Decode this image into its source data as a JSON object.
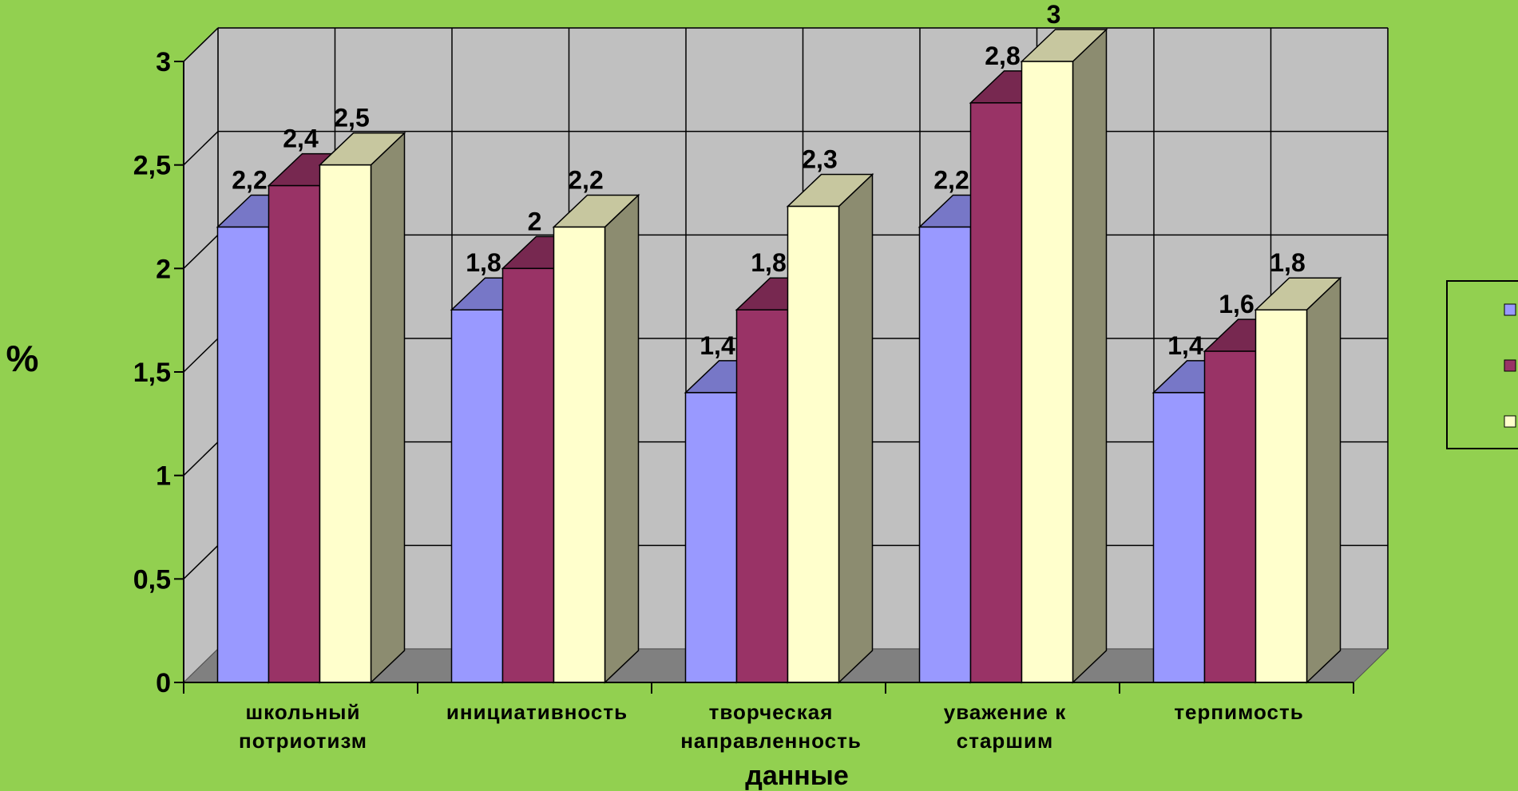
{
  "chart_data": {
    "type": "bar",
    "style": "3d-clustered-column",
    "title": "",
    "xlabel": "данные",
    "ylabel": "%",
    "ylim": [
      0,
      3
    ],
    "yticks": [
      "0",
      "0,5",
      "1",
      "1,5",
      "2",
      "2,5",
      "3"
    ],
    "ytick_values": [
      0,
      0.5,
      1,
      1.5,
      2,
      2.5,
      3
    ],
    "grid": true,
    "legend": "right",
    "categories": [
      [
        "школьный",
        "потриотизм"
      ],
      [
        "инициативность"
      ],
      [
        "творческая",
        "направленность"
      ],
      [
        "уважение к",
        "старшим"
      ],
      [
        "терпимость"
      ]
    ],
    "series": [
      {
        "color": "#9999ff",
        "values": [
          2.2,
          1.8,
          1.4,
          2.2,
          1.4
        ],
        "labels": [
          "2,2",
          "1,8",
          "1,4",
          "2,2",
          "1,4"
        ]
      },
      {
        "color": "#993366",
        "values": [
          2.4,
          2.0,
          1.8,
          2.8,
          1.6
        ],
        "labels": [
          "2,4",
          "2",
          "1,8",
          "2,8",
          "1,6"
        ]
      },
      {
        "color": "#ffffcc",
        "values": [
          2.5,
          2.2,
          2.3,
          3.0,
          1.8
        ],
        "labels": [
          "2,5",
          "2,2",
          "2,3",
          "3",
          "1,8"
        ]
      }
    ],
    "colors": {
      "background": "#92d050",
      "wall": "#c0c0c0",
      "floor": "#808080",
      "gridline": "#000000"
    }
  }
}
